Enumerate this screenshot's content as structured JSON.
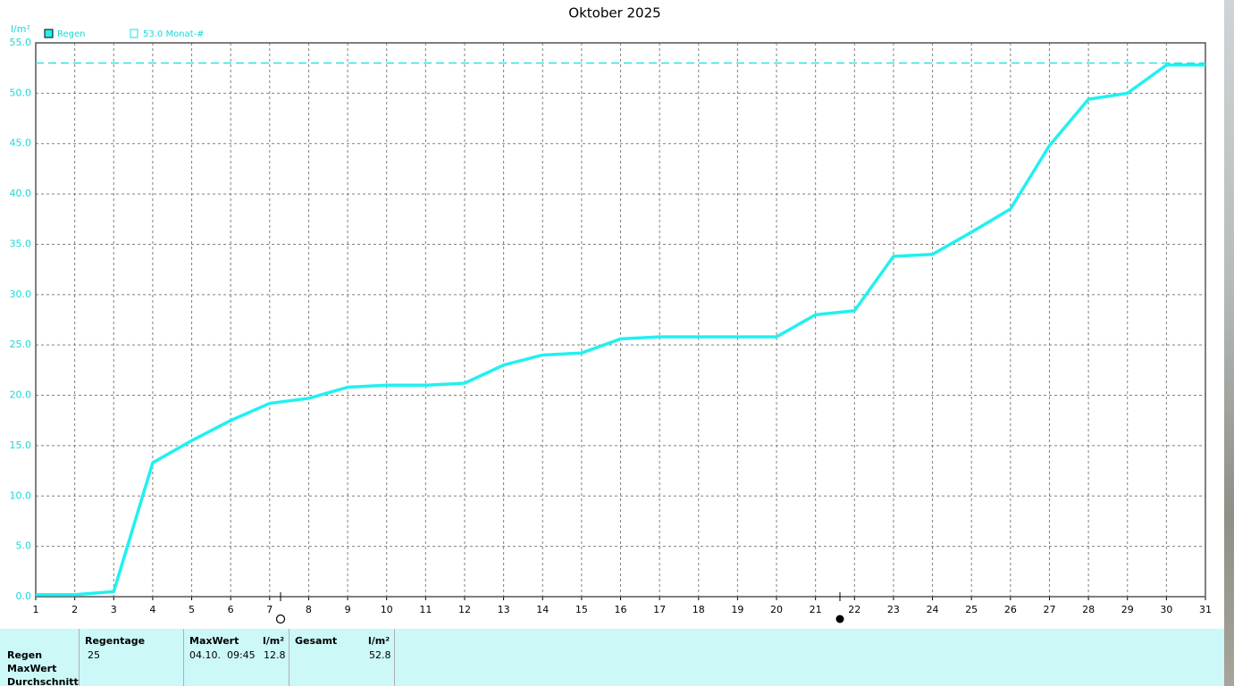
{
  "chart_data": {
    "type": "line",
    "title": "Oktober 2025",
    "y_unit": "l/m²",
    "x": [
      1,
      2,
      3,
      4,
      5,
      6,
      7,
      8,
      9,
      10,
      11,
      12,
      13,
      14,
      15,
      16,
      17,
      18,
      19,
      20,
      21,
      22,
      23,
      24,
      25,
      26,
      27,
      28,
      29,
      30,
      31
    ],
    "series": [
      {
        "name": "Regen",
        "color": "#22f0f0",
        "values": [
          0.2,
          0.2,
          0.5,
          13.3,
          15.5,
          17.5,
          19.2,
          19.7,
          20.8,
          21.0,
          21.0,
          21.2,
          23.0,
          24.0,
          24.2,
          25.6,
          25.8,
          25.8,
          25.8,
          25.8,
          28.0,
          28.4,
          33.8,
          34.0,
          36.2,
          38.5,
          44.8,
          49.4,
          50.0,
          52.8,
          52.8
        ]
      }
    ],
    "reference_line": {
      "name": "53.0 Monat-#",
      "value": 53.0,
      "color": "#22e0e0"
    },
    "xlim": [
      1,
      31
    ],
    "xticks": [
      1,
      2,
      3,
      4,
      5,
      6,
      7,
      8,
      9,
      10,
      11,
      12,
      13,
      14,
      15,
      16,
      17,
      18,
      19,
      20,
      21,
      22,
      23,
      24,
      25,
      26,
      27,
      28,
      29,
      30,
      31
    ],
    "ylim": [
      0,
      55
    ],
    "yticks": [
      {
        "value": 0,
        "label": "0.0"
      },
      {
        "value": 5,
        "label": "5.0"
      },
      {
        "value": 10,
        "label": "10.0"
      },
      {
        "value": 15,
        "label": "15.0"
      },
      {
        "value": 20,
        "label": "20.0"
      },
      {
        "value": 25,
        "label": "25.0"
      },
      {
        "value": 30,
        "label": "30.0"
      },
      {
        "value": 35,
        "label": "35.0"
      },
      {
        "value": 40,
        "label": "40.0"
      },
      {
        "value": 45,
        "label": "45.0"
      },
      {
        "value": 50,
        "label": "50.0"
      },
      {
        "value": 55,
        "label": "55.0"
      }
    ],
    "grid": true
  },
  "stats": {
    "row_labels": [
      "Regen",
      "MaxWert",
      "Durchschnitt"
    ],
    "headers": [
      "Regentage",
      "MaxWert",
      "l/m²",
      "Gesamt",
      "l/m²"
    ],
    "regen_row": [
      "25",
      "04.10.  09:45",
      "12.8",
      "52.8"
    ]
  }
}
